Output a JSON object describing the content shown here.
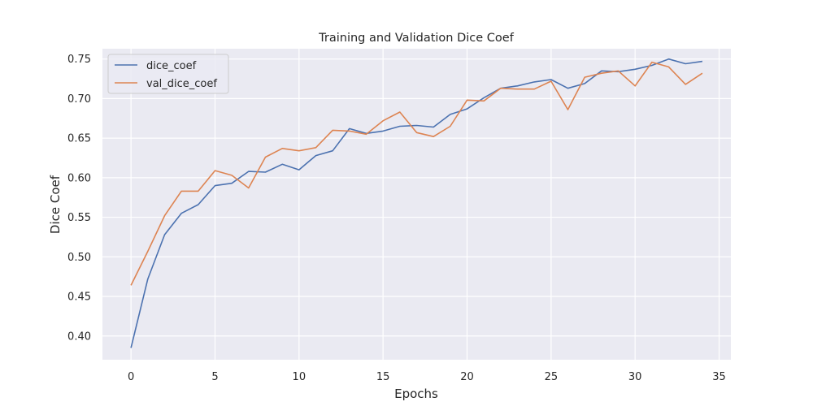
{
  "chart_data": {
    "type": "line",
    "title": "Training and Validation Dice Coef",
    "xlabel": "Epochs",
    "ylabel": "Dice Coef",
    "xlim": [
      -1.7,
      35.7
    ],
    "ylim": [
      0.37,
      0.763
    ],
    "xticks": [
      "0",
      "5",
      "10",
      "15",
      "20",
      "25",
      "30",
      "35"
    ],
    "yticks": [
      "0.40",
      "0.45",
      "0.50",
      "0.55",
      "0.60",
      "0.65",
      "0.70",
      "0.75"
    ],
    "grid": true,
    "legend_position": "top-left",
    "x": [
      0,
      1,
      2,
      3,
      4,
      5,
      6,
      7,
      8,
      9,
      10,
      11,
      12,
      13,
      14,
      15,
      16,
      17,
      18,
      19,
      20,
      21,
      22,
      23,
      24,
      25,
      26,
      27,
      28,
      29,
      30,
      31,
      32,
      33,
      34
    ],
    "series": [
      {
        "name": "dice_coef",
        "color": "#4c72b0",
        "values": [
          0.385,
          0.472,
          0.528,
          0.555,
          0.566,
          0.59,
          0.593,
          0.608,
          0.607,
          0.617,
          0.61,
          0.628,
          0.634,
          0.662,
          0.656,
          0.659,
          0.665,
          0.666,
          0.664,
          0.68,
          0.687,
          0.701,
          0.713,
          0.716,
          0.721,
          0.724,
          0.713,
          0.719,
          0.735,
          0.734,
          0.737,
          0.742,
          0.75,
          0.744,
          0.747
        ]
      },
      {
        "name": "val_dice_coef",
        "color": "#dd8452",
        "values": [
          0.464,
          0.507,
          0.552,
          0.583,
          0.583,
          0.609,
          0.603,
          0.587,
          0.626,
          0.637,
          0.634,
          0.638,
          0.66,
          0.659,
          0.655,
          0.672,
          0.683,
          0.657,
          0.652,
          0.665,
          0.698,
          0.697,
          0.713,
          0.712,
          0.712,
          0.722,
          0.686,
          0.727,
          0.732,
          0.735,
          0.716,
          0.746,
          0.74,
          0.718,
          0.732
        ]
      }
    ]
  }
}
